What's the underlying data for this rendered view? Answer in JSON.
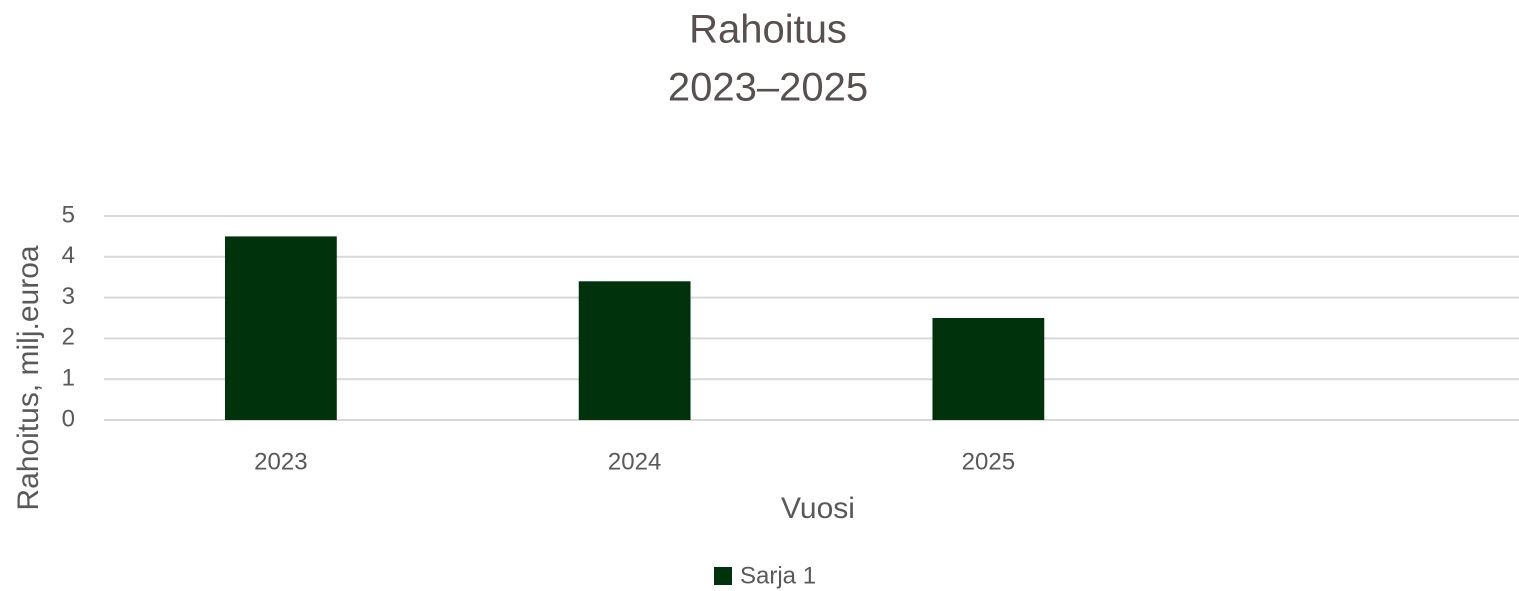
{
  "chart_data": {
    "type": "bar",
    "title": [
      "Rahoitus",
      "2023–2025"
    ],
    "x_label": "Vuosi",
    "y_label": "Rahoitus, milj.euroa",
    "categories": [
      "2023",
      "2024",
      "2025",
      null
    ],
    "series": [
      {
        "name": "Sarja 1",
        "color": "#00320b",
        "values": [
          4.5,
          3.4,
          2.5,
          null
        ]
      }
    ],
    "ylim": [
      0,
      5
    ],
    "yticks": [
      0,
      1,
      2,
      3,
      4,
      5
    ],
    "grid": true,
    "legend": "bottom"
  }
}
